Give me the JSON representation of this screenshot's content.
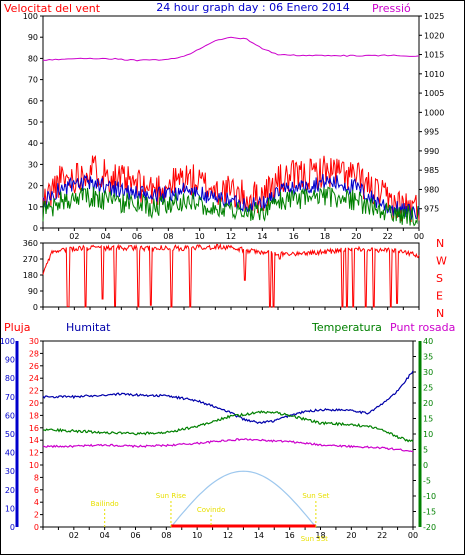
{
  "page": {
    "title": "24 hour graph day : 06 Enero 2014",
    "colors": {
      "wind": "#ff0000",
      "gust_avg": "#0000cc",
      "wind_avg": "#008000",
      "pressure": "#cc00cc",
      "dir": "#ff0000",
      "frame": "#000000",
      "humidity": "#0000aa",
      "temp": "#008000",
      "dew": "#cc00cc",
      "sun": "#9ec8ee",
      "sunline": "#ff0000",
      "event": "#e8e000"
    }
  },
  "panel1": {
    "left_label": "Velocitat del vent",
    "right_label": "Pressió"
  },
  "panel2": {
    "dir_labels": [
      "N",
      "W",
      "S",
      "E",
      "N"
    ]
  },
  "panel3": {
    "labels": {
      "pluja": "Pluja",
      "humitat": "Humitat",
      "temperatura": "Temperatura",
      "punt_rosada": "Punt rosada"
    },
    "events": [
      {
        "label": "Bailindo",
        "hour": 4.0
      },
      {
        "label": "Sun Rise",
        "hour": 8.3
      },
      {
        "label": "Covindo",
        "hour": 10.9
      },
      {
        "label": "Sun Set",
        "hour": 17.7
      },
      {
        "label": "Sun 3St",
        "hour": 17.6
      }
    ]
  },
  "chart_data": [
    {
      "type": "line",
      "x_label_ticks": [
        "02",
        "04",
        "06",
        "08",
        "10",
        "12",
        "14",
        "16",
        "18",
        "20",
        "22",
        "00"
      ],
      "x_range_hours": [
        0,
        24
      ],
      "left_axis": {
        "label": "Velocitat del vent",
        "range": [
          0,
          100
        ],
        "ticks": [
          0,
          10,
          20,
          30,
          40,
          50,
          60,
          70,
          80,
          90,
          100
        ]
      },
      "right_axis": {
        "label": "Pressió",
        "range": [
          970,
          1025
        ],
        "ticks": [
          975,
          980,
          985,
          990,
          995,
          1000,
          1005,
          1010,
          1015,
          1020,
          1025
        ]
      },
      "series": [
        {
          "key": "wind",
          "axis": "left",
          "noise": 8,
          "points": [
            [
              0,
              12
            ],
            [
              1,
              22
            ],
            [
              2,
              24
            ],
            [
              3,
              28
            ],
            [
              4,
              26
            ],
            [
              5,
              22
            ],
            [
              6,
              20
            ],
            [
              7,
              18
            ],
            [
              8,
              20
            ],
            [
              9,
              24
            ],
            [
              10,
              21
            ],
            [
              11,
              18
            ],
            [
              12,
              17
            ],
            [
              13,
              14
            ],
            [
              14,
              15
            ],
            [
              15,
              22
            ],
            [
              16,
              24
            ],
            [
              17,
              25
            ],
            [
              18,
              27
            ],
            [
              19,
              26
            ],
            [
              20,
              24
            ],
            [
              21,
              18
            ],
            [
              22,
              13
            ],
            [
              23,
              10
            ],
            [
              24,
              9
            ]
          ]
        },
        {
          "key": "gust_avg",
          "axis": "left",
          "noise": 4,
          "points": [
            [
              0,
              12
            ],
            [
              1,
              18
            ],
            [
              2,
              20
            ],
            [
              3,
              21
            ],
            [
              4,
              20
            ],
            [
              5,
              18
            ],
            [
              6,
              16
            ],
            [
              7,
              15
            ],
            [
              8,
              16
            ],
            [
              9,
              18
            ],
            [
              10,
              16
            ],
            [
              11,
              14
            ],
            [
              12,
              13
            ],
            [
              13,
              11
            ],
            [
              14,
              11
            ],
            [
              15,
              17
            ],
            [
              16,
              19
            ],
            [
              17,
              20
            ],
            [
              18,
              22
            ],
            [
              19,
              21
            ],
            [
              20,
              19
            ],
            [
              21,
              14
            ],
            [
              22,
              10
            ],
            [
              23,
              8
            ],
            [
              24,
              7
            ]
          ]
        },
        {
          "key": "wind_avg",
          "axis": "left",
          "noise": 5,
          "points": [
            [
              0,
              8
            ],
            [
              1,
              12
            ],
            [
              2,
              14
            ],
            [
              3,
              15
            ],
            [
              4,
              13
            ],
            [
              5,
              12
            ],
            [
              6,
              11
            ],
            [
              7,
              10
            ],
            [
              8,
              11
            ],
            [
              9,
              13
            ],
            [
              10,
              12
            ],
            [
              11,
              9
            ],
            [
              12,
              9
            ],
            [
              13,
              7
            ],
            [
              14,
              8
            ],
            [
              15,
              12
            ],
            [
              16,
              13
            ],
            [
              17,
              14
            ],
            [
              18,
              15
            ],
            [
              19,
              14
            ],
            [
              20,
              13
            ],
            [
              21,
              9
            ],
            [
              22,
              7
            ],
            [
              23,
              6
            ],
            [
              24,
              6
            ]
          ]
        },
        {
          "key": "pressure",
          "axis": "right",
          "noise": 0.15,
          "points": [
            [
              0,
              1013.5
            ],
            [
              2,
              1014
            ],
            [
              4,
              1014
            ],
            [
              6,
              1013.5
            ],
            [
              8,
              1013.7
            ],
            [
              9,
              1014.5
            ],
            [
              10,
              1016.5
            ],
            [
              11,
              1018.5
            ],
            [
              12,
              1019.5
            ],
            [
              13,
              1019
            ],
            [
              14,
              1016.5
            ],
            [
              15,
              1015
            ],
            [
              16,
              1014.8
            ],
            [
              18,
              1014.7
            ],
            [
              20,
              1014.7
            ],
            [
              22,
              1014.8
            ],
            [
              24,
              1014.6
            ]
          ]
        }
      ]
    },
    {
      "type": "line",
      "x_range_hours": [
        0,
        24
      ],
      "y_axis": {
        "range": [
          0,
          360
        ],
        "ticks": [
          0,
          90,
          180,
          270,
          360
        ]
      },
      "series": [
        {
          "key": "dir",
          "base": [
            [
              0,
              180
            ],
            [
              0.5,
              300
            ],
            [
              1,
              320
            ],
            [
              2,
              330
            ],
            [
              3,
              335
            ],
            [
              4,
              330
            ],
            [
              5,
              335
            ],
            [
              6,
              330
            ],
            [
              7,
              330
            ],
            [
              8,
              335
            ],
            [
              9,
              330
            ],
            [
              10,
              335
            ],
            [
              11,
              340
            ],
            [
              12,
              330
            ],
            [
              13,
              320
            ],
            [
              14,
              310
            ],
            [
              15,
              300
            ],
            [
              16,
              300
            ],
            [
              17,
              305
            ],
            [
              18,
              310
            ],
            [
              19,
              320
            ],
            [
              20,
              330
            ],
            [
              21,
              320
            ],
            [
              22,
              320
            ],
            [
              23,
              310
            ],
            [
              24,
              290
            ]
          ],
          "dips": [
            [
              1.6,
              2
            ],
            [
              2.7,
              0
            ],
            [
              3.8,
              45
            ],
            [
              4.6,
              5
            ],
            [
              6.1,
              0
            ],
            [
              6.9,
              10
            ],
            [
              8.2,
              0
            ],
            [
              9.4,
              0
            ],
            [
              12.9,
              150
            ],
            [
              14.5,
              0
            ],
            [
              14.7,
              0
            ],
            [
              15.1,
              270
            ],
            [
              19.1,
              0
            ],
            [
              19.4,
              0
            ],
            [
              19.8,
              0
            ],
            [
              20.6,
              0
            ],
            [
              21.1,
              0
            ],
            [
              22.2,
              0
            ],
            [
              22.6,
              20
            ]
          ]
        }
      ]
    },
    {
      "type": "line",
      "x_range_hours": [
        0,
        24
      ],
      "axes": [
        {
          "label": "Pluja",
          "range": [
            0,
            30
          ],
          "ticks": [
            0,
            2,
            4,
            6,
            8,
            10,
            12,
            14,
            16,
            18,
            20,
            22,
            24,
            26,
            28,
            30
          ]
        },
        {
          "label": "Humitat",
          "range": [
            0,
            100
          ],
          "ticks": [
            0,
            10,
            20,
            30,
            40,
            50,
            60,
            70,
            80,
            90,
            100
          ]
        },
        {
          "label": "Temperatura",
          "range": [
            -20,
            40
          ],
          "ticks": [
            -20,
            -15,
            -10,
            -5,
            0,
            5,
            10,
            15,
            20,
            25,
            30,
            35,
            40
          ]
        }
      ],
      "series": [
        {
          "key": "humidity",
          "axis": "Humitat",
          "noise": 0.6,
          "points": [
            [
              0,
              70
            ],
            [
              2,
              70
            ],
            [
              4,
              71
            ],
            [
              5,
              71.5
            ],
            [
              6,
              71
            ],
            [
              8,
              70.5
            ],
            [
              10,
              68
            ],
            [
              12,
              62
            ],
            [
              13,
              58
            ],
            [
              14,
              56
            ],
            [
              15,
              57
            ],
            [
              16,
              60
            ],
            [
              17,
              62
            ],
            [
              18,
              63
            ],
            [
              20,
              63
            ],
            [
              21,
              61
            ],
            [
              22,
              66
            ],
            [
              23,
              73
            ],
            [
              24,
              84
            ]
          ]
        },
        {
          "key": "temp",
          "axis": "Temperatura",
          "noise": 0.4,
          "points": [
            [
              0,
              11.5
            ],
            [
              2,
              11
            ],
            [
              4,
              10.5
            ],
            [
              6,
              10
            ],
            [
              8,
              10.5
            ],
            [
              10,
              12.5
            ],
            [
              12,
              15.5
            ],
            [
              14,
              17
            ],
            [
              15,
              17
            ],
            [
              16,
              16
            ],
            [
              18,
              13.5
            ],
            [
              20,
              13
            ],
            [
              21,
              12.5
            ],
            [
              22,
              11.5
            ],
            [
              23,
              9
            ],
            [
              24,
              7.5
            ]
          ]
        },
        {
          "key": "dew",
          "axis": "Temperatura",
          "noise": 0.3,
          "points": [
            [
              0,
              6
            ],
            [
              2,
              6
            ],
            [
              4,
              6.5
            ],
            [
              6,
              6
            ],
            [
              8,
              6.3
            ],
            [
              10,
              7
            ],
            [
              12,
              8
            ],
            [
              13,
              8.3
            ],
            [
              14,
              8
            ],
            [
              16,
              7.5
            ],
            [
              18,
              6.5
            ],
            [
              20,
              6
            ],
            [
              22,
              5.5
            ],
            [
              23,
              5
            ],
            [
              24,
              4.5
            ]
          ]
        }
      ],
      "sun": {
        "rise_hour": 8.3,
        "set_hour": 17.7,
        "peak_percent": 30
      }
    }
  ]
}
